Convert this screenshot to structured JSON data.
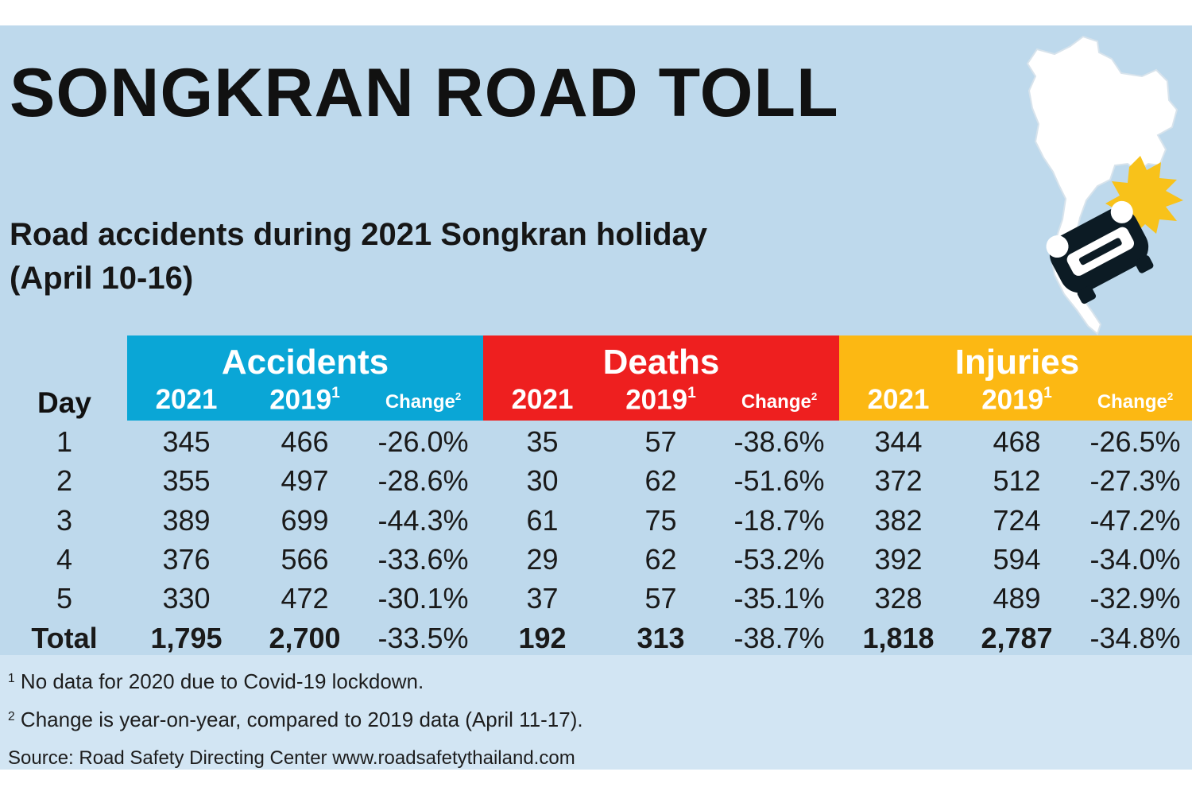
{
  "title": "SONGKRAN ROAD TOLL",
  "subtitle_lines": [
    "Road accidents during 2021 Songkran holiday",
    "(April 10-16)"
  ],
  "colors": {
    "accidents": "#0aa6d6",
    "deaths": "#ee1f1f",
    "injuries": "#fcb813",
    "panel": "#bed9ec",
    "footer": "#d2e5f3",
    "text": "#1a1a1a"
  },
  "icons": [
    "thailand-map-icon",
    "crashed-car-icon"
  ],
  "chart_data": {
    "type": "table",
    "day_header": "Day",
    "groups": [
      {
        "name": "Accidents",
        "columns": [
          "2021",
          "2019",
          "Change"
        ],
        "column_marks": [
          "",
          "1",
          "2"
        ]
      },
      {
        "name": "Deaths",
        "columns": [
          "2021",
          "2019",
          "Change"
        ],
        "column_marks": [
          "",
          "1",
          "2"
        ]
      },
      {
        "name": "Injuries",
        "columns": [
          "2021",
          "2019",
          "Change"
        ],
        "column_marks": [
          "",
          "1",
          "2"
        ]
      }
    ],
    "rows": [
      {
        "day": "1",
        "values": [
          "345",
          "466",
          "-26.0%",
          "35",
          "57",
          "-38.6%",
          "344",
          "468",
          "-26.5%"
        ]
      },
      {
        "day": "2",
        "values": [
          "355",
          "497",
          "-28.6%",
          "30",
          "62",
          "-51.6%",
          "372",
          "512",
          "-27.3%"
        ]
      },
      {
        "day": "3",
        "values": [
          "389",
          "699",
          "-44.3%",
          "61",
          "75",
          "-18.7%",
          "382",
          "724",
          "-47.2%"
        ]
      },
      {
        "day": "4",
        "values": [
          "376",
          "566",
          "-33.6%",
          "29",
          "62",
          "-53.2%",
          "392",
          "594",
          "-34.0%"
        ]
      },
      {
        "day": "5",
        "values": [
          "330",
          "472",
          "-30.1%",
          "37",
          "57",
          "-35.1%",
          "328",
          "489",
          "-32.9%"
        ]
      },
      {
        "day": "Total",
        "values": [
          "1,795",
          "2,700",
          "-33.5%",
          "192",
          "313",
          "-38.7%",
          "1,818",
          "2,787",
          "-34.8%"
        ]
      }
    ]
  },
  "footnotes": [
    {
      "mark": "1",
      "text": "No data for 2020 due to Covid-19 lockdown."
    },
    {
      "mark": "2",
      "text": "Change is year-on-year, compared to 2019 data (April 11-17)."
    }
  ],
  "source": "Source: Road Safety Directing Center www.roadsafetythailand.com"
}
